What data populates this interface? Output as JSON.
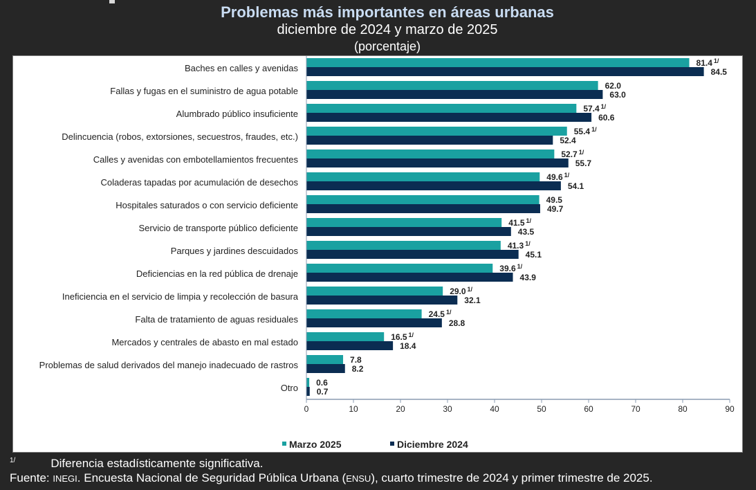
{
  "header": {
    "title": "Problemas más importantes en áreas urbanas",
    "subtitle": "diciembre de 2024 y marzo de 2025",
    "unit": "(porcentaje)"
  },
  "chart_data": {
    "type": "bar",
    "orientation": "horizontal",
    "categories": [
      "Baches en calles y avenidas",
      "Fallas y fugas en el suministro de agua potable",
      "Alumbrado público insuficiente",
      "Delincuencia (robos, extorsiones, secuestros, fraudes, etc.)",
      "Calles y avenidas con embotellamientos frecuentes",
      "Coladeras tapadas por acumulación de desechos",
      "Hospitales saturados o con servicio deficiente",
      "Servicio de transporte público deficiente",
      "Parques y jardines descuidados",
      "Deficiencias en la red pública de drenaje",
      "Ineficiencia en el servicio de limpia y recolección de basura",
      "Falta de tratamiento de aguas residuales",
      "Mercados y centrales de abasto en mal estado",
      "Problemas de salud derivados del manejo inadecuado de rastros",
      "Otro"
    ],
    "series": [
      {
        "name": "Marzo 2025",
        "color": "#1aa1a1",
        "values": [
          81.4,
          62.0,
          57.4,
          55.4,
          52.7,
          49.6,
          49.5,
          41.5,
          41.3,
          39.6,
          29.0,
          24.5,
          16.5,
          7.8,
          0.6
        ],
        "significant": [
          true,
          false,
          true,
          true,
          true,
          true,
          false,
          true,
          true,
          true,
          true,
          true,
          true,
          false,
          false
        ]
      },
      {
        "name": "Diciembre 2024",
        "color": "#0b2d52",
        "values": [
          84.5,
          63.0,
          60.6,
          52.4,
          55.7,
          54.1,
          49.7,
          43.5,
          45.1,
          43.9,
          32.1,
          28.8,
          18.4,
          8.2,
          0.7
        ]
      }
    ],
    "xlim": [
      0,
      90
    ],
    "xticks": [
      "0",
      "10",
      "20",
      "30",
      "40",
      "50",
      "60",
      "70",
      "80",
      "90"
    ],
    "significance_mark": "1/",
    "legend_position": "bottom",
    "grid": false
  },
  "footer": {
    "note_mark": "1/",
    "note_text": "Diferencia estadísticamente significativa.",
    "source_label": "Fuente:",
    "source_org": "INEGI",
    "source_text_1": ". Encuesta Nacional de Seguridad Pública Urbana (",
    "source_abbr": "ENSU",
    "source_text_2": "), cuarto trimestre de 2024 y primer trimestre de 2025."
  }
}
